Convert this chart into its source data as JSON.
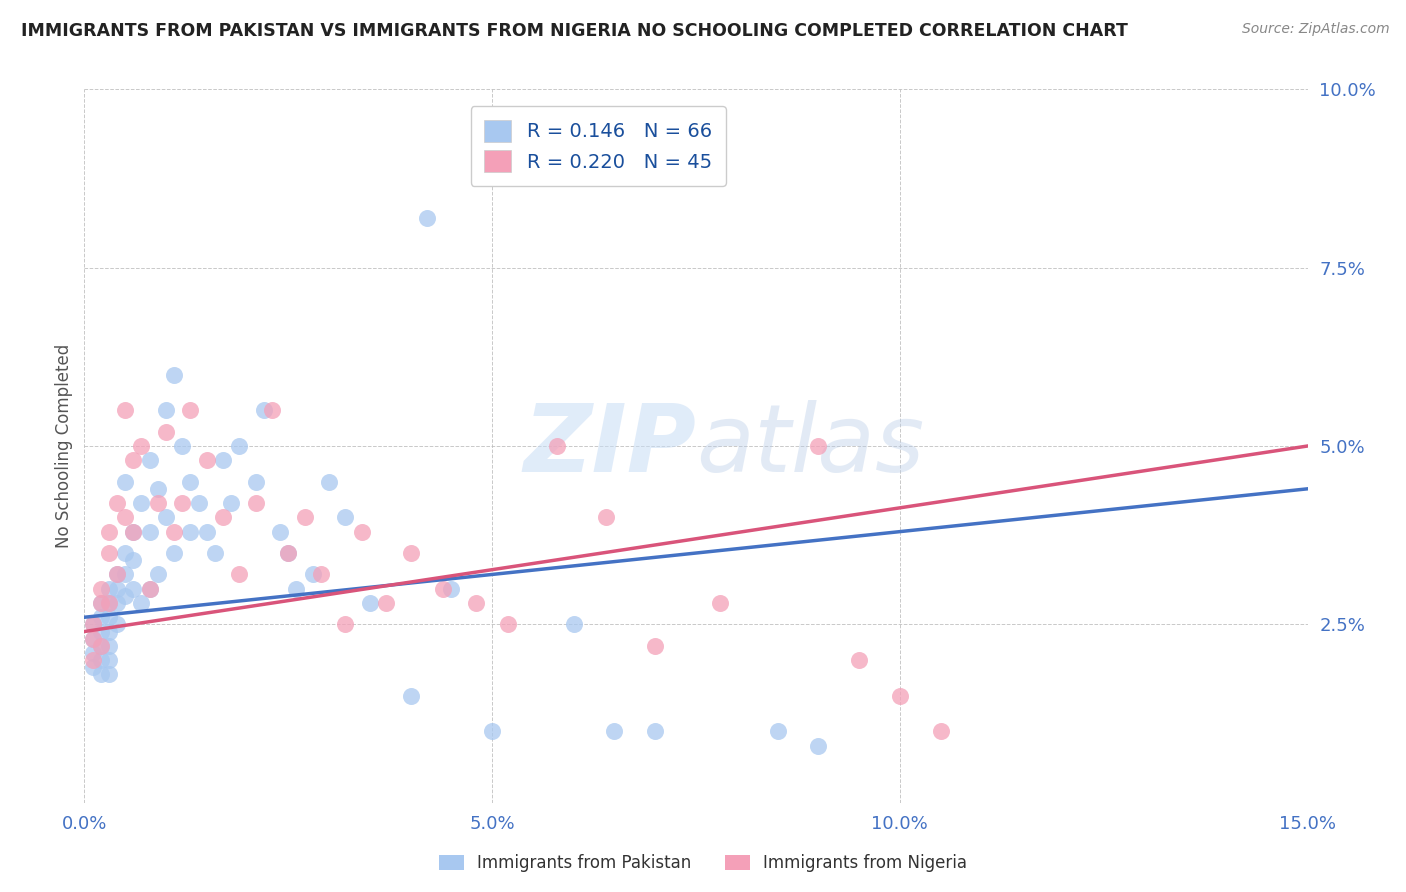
{
  "title": "IMMIGRANTS FROM PAKISTAN VS IMMIGRANTS FROM NIGERIA NO SCHOOLING COMPLETED CORRELATION CHART",
  "source": "Source: ZipAtlas.com",
  "ylabel": "No Schooling Completed",
  "xlim": [
    0.0,
    0.15
  ],
  "ylim": [
    0.0,
    0.1
  ],
  "xticks": [
    0.0,
    0.05,
    0.1,
    0.15
  ],
  "yticks": [
    0.0,
    0.025,
    0.05,
    0.075,
    0.1
  ],
  "xtick_labels": [
    "0.0%",
    "5.0%",
    "10.0%",
    "15.0%"
  ],
  "ytick_labels": [
    "",
    "2.5%",
    "5.0%",
    "7.5%",
    "10.0%"
  ],
  "pakistan_color": "#a8c8f0",
  "nigeria_color": "#f4a0b8",
  "pakistan_line_color": "#4472c4",
  "nigeria_line_color": "#d9547a",
  "pakistan_R": "0.146",
  "pakistan_N": "66",
  "nigeria_R": "0.220",
  "nigeria_N": "45",
  "legend_label_pakistan": "Immigrants from Pakistan",
  "legend_label_nigeria": "Immigrants from Nigeria",
  "pakistan_x": [
    0.001,
    0.001,
    0.001,
    0.001,
    0.002,
    0.002,
    0.002,
    0.002,
    0.002,
    0.002,
    0.003,
    0.003,
    0.003,
    0.003,
    0.003,
    0.003,
    0.003,
    0.004,
    0.004,
    0.004,
    0.004,
    0.005,
    0.005,
    0.005,
    0.005,
    0.006,
    0.006,
    0.006,
    0.007,
    0.007,
    0.008,
    0.008,
    0.008,
    0.009,
    0.009,
    0.01,
    0.01,
    0.011,
    0.011,
    0.012,
    0.013,
    0.013,
    0.014,
    0.015,
    0.016,
    0.017,
    0.018,
    0.019,
    0.021,
    0.022,
    0.024,
    0.025,
    0.026,
    0.028,
    0.03,
    0.032,
    0.035,
    0.04,
    0.042,
    0.045,
    0.05,
    0.06,
    0.065,
    0.07,
    0.085,
    0.09
  ],
  "pakistan_y": [
    0.025,
    0.023,
    0.021,
    0.019,
    0.028,
    0.026,
    0.024,
    0.022,
    0.02,
    0.018,
    0.03,
    0.028,
    0.026,
    0.024,
    0.022,
    0.02,
    0.018,
    0.032,
    0.03,
    0.028,
    0.025,
    0.035,
    0.032,
    0.029,
    0.045,
    0.038,
    0.034,
    0.03,
    0.042,
    0.028,
    0.048,
    0.038,
    0.03,
    0.044,
    0.032,
    0.055,
    0.04,
    0.06,
    0.035,
    0.05,
    0.045,
    0.038,
    0.042,
    0.038,
    0.035,
    0.048,
    0.042,
    0.05,
    0.045,
    0.055,
    0.038,
    0.035,
    0.03,
    0.032,
    0.045,
    0.04,
    0.028,
    0.015,
    0.082,
    0.03,
    0.01,
    0.025,
    0.01,
    0.01,
    0.01,
    0.008
  ],
  "nigeria_x": [
    0.001,
    0.001,
    0.001,
    0.002,
    0.002,
    0.002,
    0.003,
    0.003,
    0.003,
    0.004,
    0.004,
    0.005,
    0.005,
    0.006,
    0.006,
    0.007,
    0.008,
    0.009,
    0.01,
    0.011,
    0.012,
    0.013,
    0.015,
    0.017,
    0.019,
    0.021,
    0.023,
    0.025,
    0.027,
    0.029,
    0.032,
    0.034,
    0.037,
    0.04,
    0.044,
    0.048,
    0.052,
    0.058,
    0.064,
    0.07,
    0.078,
    0.09,
    0.095,
    0.1,
    0.105
  ],
  "nigeria_y": [
    0.025,
    0.023,
    0.02,
    0.03,
    0.028,
    0.022,
    0.035,
    0.028,
    0.038,
    0.042,
    0.032,
    0.04,
    0.055,
    0.048,
    0.038,
    0.05,
    0.03,
    0.042,
    0.052,
    0.038,
    0.042,
    0.055,
    0.048,
    0.04,
    0.032,
    0.042,
    0.055,
    0.035,
    0.04,
    0.032,
    0.025,
    0.038,
    0.028,
    0.035,
    0.03,
    0.028,
    0.025,
    0.05,
    0.04,
    0.022,
    0.028,
    0.05,
    0.02,
    0.015,
    0.01
  ],
  "pak_line_x0": 0.0,
  "pak_line_y0": 0.026,
  "pak_line_x1": 0.15,
  "pak_line_y1": 0.044,
  "nig_line_x0": 0.0,
  "nig_line_y0": 0.024,
  "nig_line_x1": 0.15,
  "nig_line_y1": 0.05
}
